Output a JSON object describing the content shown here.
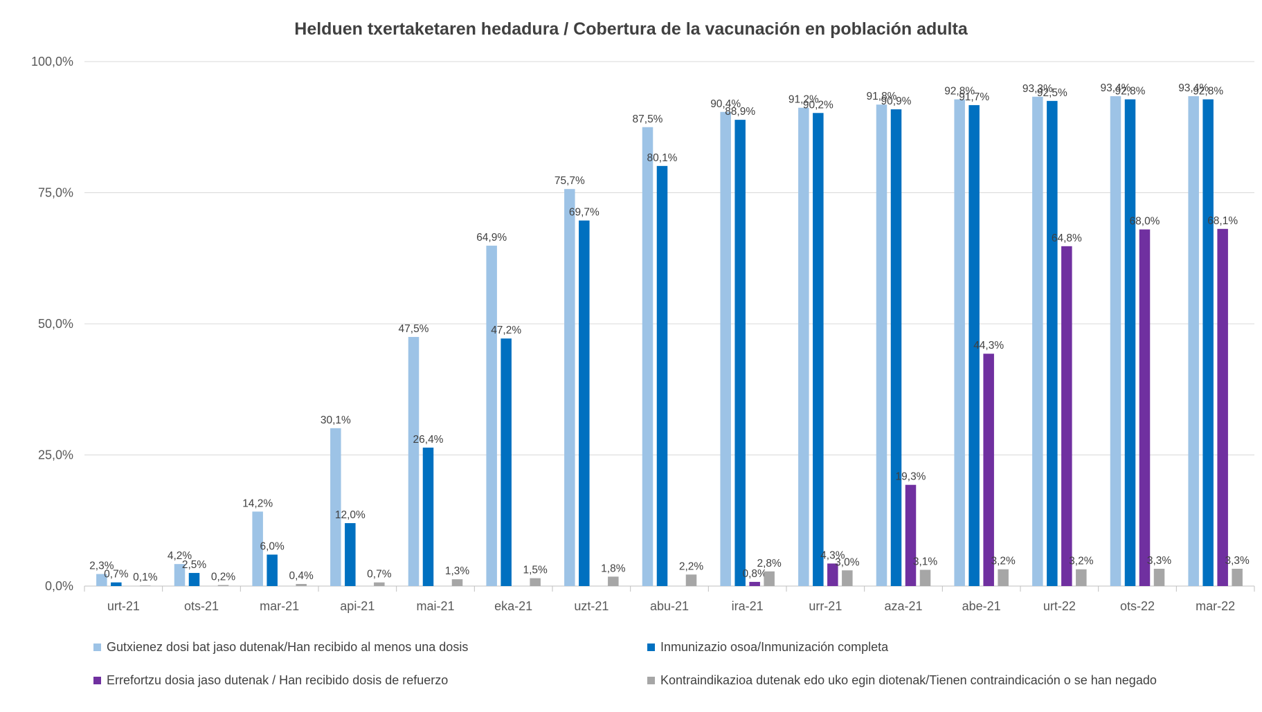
{
  "chart_data": {
    "type": "bar",
    "title": "Helduen txertaketaren hedadura / Cobertura de la vacunación en población adulta",
    "categories": [
      "urt-21",
      "ots-21",
      "mar-21",
      "api-21",
      "mai-21",
      "eka-21",
      "uzt-21",
      "abu-21",
      "ira-21",
      "urr-21",
      "aza-21",
      "abe-21",
      "urt-22",
      "ots-22",
      "mar-22"
    ],
    "ylim": [
      0,
      100
    ],
    "yticks": [
      0,
      25,
      50,
      75,
      100
    ],
    "ytick_labels": [
      "0,0%",
      "25,0%",
      "50,0%",
      "75,0%",
      "100,0%"
    ],
    "grid": true,
    "legend_position": "bottom",
    "series": [
      {
        "name": "Gutxienez dosi bat jaso dutenak/Han recibido al menos una dosis",
        "color": "#9dc3e6",
        "values": [
          2.3,
          4.2,
          14.2,
          30.1,
          47.5,
          64.9,
          75.7,
          87.5,
          90.4,
          91.2,
          91.8,
          92.8,
          93.3,
          93.4,
          93.4
        ],
        "labels": [
          "2,3%",
          "4,2%",
          "14,2%",
          "30,1%",
          "47,5%",
          "64,9%",
          "75,7%",
          "87,5%",
          "90,4%",
          "91,2%",
          "91,8%",
          "92,8%",
          "93,3%",
          "93,4%",
          "93,4%"
        ]
      },
      {
        "name": "Inmunizazio osoa/Inmunización completa",
        "color": "#0070c0",
        "values": [
          0.7,
          2.5,
          6.0,
          12.0,
          26.4,
          47.2,
          69.7,
          80.1,
          88.9,
          90.2,
          90.9,
          91.7,
          92.5,
          92.8,
          92.8
        ],
        "labels": [
          "0,7%",
          "2,5%",
          "6,0%",
          "12,0%",
          "26,4%",
          "47,2%",
          "69,7%",
          "80,1%",
          "88,9%",
          "90,2%",
          "90,9%",
          "91,7%",
          "92,5%",
          "92,8%",
          "92,8%"
        ]
      },
      {
        "name": "Errefortzu dosia jaso dutenak / Han recibido dosis de refuerzo",
        "color": "#7030a0",
        "values": [
          null,
          null,
          null,
          null,
          null,
          null,
          null,
          null,
          0.8,
          4.3,
          19.3,
          44.3,
          64.8,
          68.0,
          68.1
        ],
        "labels": [
          "",
          "",
          "",
          "",
          "",
          "",
          "",
          "",
          "0,8%",
          "4,3%",
          "19,3%",
          "44,3%",
          "64,8%",
          "68,0%",
          "68,1%"
        ]
      },
      {
        "name": "Kontraindikazioa dutenak edo uko egin diotenak/Tienen contraindicación o se han negado",
        "color": "#a6a6a6",
        "values": [
          0.1,
          0.2,
          0.4,
          0.7,
          1.3,
          1.5,
          1.8,
          2.2,
          2.8,
          3.0,
          3.1,
          3.2,
          3.2,
          3.3,
          3.3
        ],
        "labels": [
          "0,1%",
          "0,2%",
          "0,4%",
          "0,7%",
          "1,3%",
          "1,5%",
          "1,8%",
          "2,2%",
          "2,8%",
          "3,0%",
          "3,1%",
          "3,2%",
          "3,2%",
          "3,3%",
          "3,3%"
        ]
      }
    ]
  }
}
